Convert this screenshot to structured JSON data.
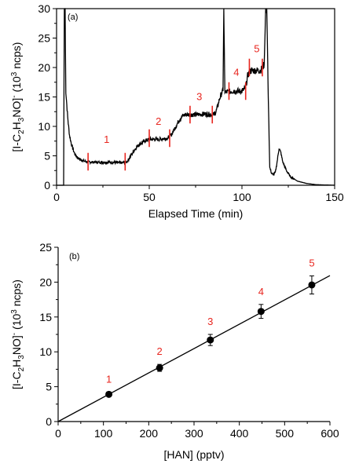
{
  "chart_data": [
    {
      "type": "line",
      "panel_label": "(a)",
      "xlabel": "Elapsed Time (min)",
      "ylabel": "[I-C2H3NO]- (10^3 ncps)",
      "xlim": [
        0,
        150
      ],
      "ylim": [
        0,
        30
      ],
      "x_ticks": [
        "0",
        "50",
        "100",
        "150"
      ],
      "y_ticks": [
        "0",
        "5",
        "10",
        "15",
        "20",
        "25",
        "30"
      ],
      "grid": false,
      "series": [
        {
          "x": [
            0,
            3.8,
            4.2,
            4.6,
            5,
            6,
            7,
            8,
            9,
            10,
            12,
            14,
            16,
            20,
            25,
            30,
            35,
            38,
            40,
            42,
            44,
            46,
            48,
            50,
            55,
            60,
            62,
            64,
            66,
            68,
            70,
            75,
            80,
            85,
            86,
            87,
            88,
            89,
            89.8,
            90.2,
            90.8,
            91.5,
            95,
            100,
            102,
            103,
            104,
            105,
            110,
            112,
            112.8,
            113.4,
            114.2,
            115,
            116,
            117,
            118,
            119,
            120,
            121,
            122,
            124,
            126,
            130,
            135,
            140,
            150
          ],
          "values": [
            0,
            0,
            30,
            30,
            16,
            11.5,
            8.5,
            7,
            6,
            5.2,
            4.5,
            4.2,
            4,
            3.9,
            3.9,
            3.9,
            3.8,
            4,
            5,
            6,
            6.8,
            7.2,
            7.6,
            7.8,
            7.8,
            8,
            8.6,
            9.8,
            11,
            11.8,
            12,
            12,
            12.1,
            12,
            12.5,
            13.5,
            14.8,
            15.6,
            16,
            30,
            16,
            15.8,
            16,
            16,
            16.5,
            18.5,
            19.3,
            19.5,
            19.5,
            20.5,
            30,
            30,
            15,
            3,
            2,
            1.8,
            2.2,
            4,
            6.3,
            5.5,
            4,
            2.5,
            1.5,
            0.7,
            0.3,
            0.1,
            0
          ]
        }
      ],
      "segments": [
        {
          "label": "1",
          "label_at": [
            27,
            7.2
          ],
          "start": 17,
          "end": 37,
          "level": 4
        },
        {
          "label": "2",
          "label_at": [
            55,
            10.3
          ],
          "start": 50,
          "end": 61,
          "level": 8
        },
        {
          "label": "3",
          "label_at": [
            77,
            14.5
          ],
          "start": 72,
          "end": 84,
          "level": 12
        },
        {
          "label": "4",
          "label_at": [
            97,
            18.6
          ],
          "start": 93,
          "end": 102,
          "level": 16
        },
        {
          "label": "5",
          "label_at": [
            108,
            22.6
          ],
          "start": 104,
          "end": 111,
          "level": 20
        }
      ]
    },
    {
      "type": "scatter",
      "panel_label": "(b)",
      "xlabel": "[HAN] (pptv)",
      "ylabel": "[I-C2H3NO]- (10^3 ncps)",
      "xlim": [
        0,
        600
      ],
      "ylim": [
        0,
        25
      ],
      "x_ticks": [
        "0",
        "100",
        "200",
        "300",
        "400",
        "500",
        "600"
      ],
      "y_ticks": [
        "0",
        "5",
        "10",
        "15",
        "20",
        "25"
      ],
      "grid": false,
      "points": [
        {
          "label": "1",
          "x": 112,
          "y": 3.9,
          "err": 0.3
        },
        {
          "label": "2",
          "x": 224,
          "y": 7.7,
          "err": 0.5
        },
        {
          "label": "3",
          "x": 336,
          "y": 11.7,
          "err": 0.8
        },
        {
          "label": "4",
          "x": 448,
          "y": 15.8,
          "err": 1.0
        },
        {
          "label": "5",
          "x": 560,
          "y": 19.6,
          "err": 1.3
        }
      ],
      "fit": {
        "slope": 0.0349,
        "intercept": 0
      }
    }
  ]
}
